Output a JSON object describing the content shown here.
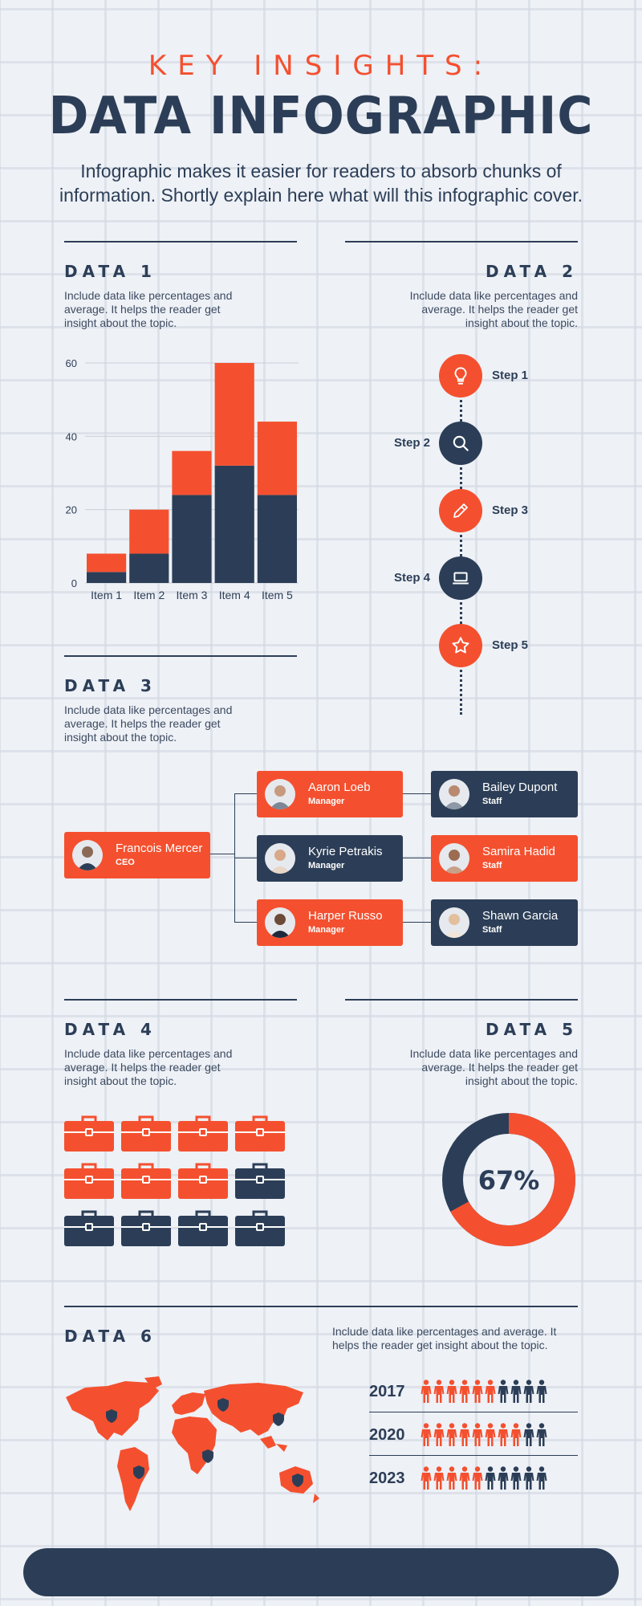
{
  "header": {
    "kicker": "KEY INSIGHTS:",
    "title": "DATA INFOGRAPHIC",
    "subtitle": "Infographic makes it easier for readers to absorb chunks of information. Shortly explain here what will this infographic cover."
  },
  "colors": {
    "accent": "#f4502f",
    "navy": "#2c3e57",
    "background": "#eef1f6"
  },
  "sections": {
    "data1": {
      "title": "DATA 1",
      "desc": "Include data like percentages and average. It helps the reader get insight about the topic."
    },
    "data2": {
      "title": "DATA 2",
      "desc": "Include data like percentages and average. It helps the reader get insight about the topic."
    },
    "data3": {
      "title": "DATA 3",
      "desc": "Include data like percentages and average. It helps the reader get insight about the topic."
    },
    "data4": {
      "title": "DATA 4",
      "desc": "Include data like percentages and average. It helps the reader get insight about the topic."
    },
    "data5": {
      "title": "DATA 5",
      "desc": "Include data like percentages and average. It helps the reader get insight about the topic."
    },
    "data6": {
      "title": "DATA 6",
      "desc": "Include data like percentages and average. It helps the reader get insight about the topic."
    }
  },
  "chart_data": {
    "type": "bar",
    "stacked": true,
    "categories": [
      "Item 1",
      "Item 2",
      "Item 3",
      "Item 4",
      "Item 5"
    ],
    "series": [
      {
        "values": [
          3,
          8,
          24,
          32,
          24
        ],
        "color": "#2c3e57"
      },
      {
        "values": [
          5,
          12,
          12,
          28,
          20
        ],
        "color": "#f4502f"
      }
    ],
    "yticks": [
      "0",
      "20",
      "40",
      "60"
    ],
    "ylim": [
      0,
      60
    ],
    "grid": "horizontal"
  },
  "steps": [
    {
      "label": "Step 1",
      "icon": "lightbulb-icon",
      "color": "#f4502f",
      "side": "right"
    },
    {
      "label": "Step 2",
      "icon": "search-icon",
      "color": "#2c3e57",
      "side": "left"
    },
    {
      "label": "Step 3",
      "icon": "pencil-icon",
      "color": "#f4502f",
      "side": "right"
    },
    {
      "label": "Step 4",
      "icon": "laptop-icon",
      "color": "#2c3e57",
      "side": "left"
    },
    {
      "label": "Step 5",
      "icon": "star-icon",
      "color": "#f4502f",
      "side": "right"
    }
  ],
  "org": {
    "ceo": {
      "name": "Francois Mercer",
      "role": "CEO"
    },
    "managers": [
      {
        "name": "Aaron Loeb",
        "role": "Manager"
      },
      {
        "name": "Kyrie Petrakis",
        "role": "Manager"
      },
      {
        "name": "Harper Russo",
        "role": "Manager"
      }
    ],
    "staff": [
      {
        "name": "Bailey Dupont",
        "role": "Staff"
      },
      {
        "name": "Samira Hadid",
        "role": "Staff"
      },
      {
        "name": "Shawn Garcia",
        "role": "Staff"
      }
    ]
  },
  "briefcases": {
    "total": 12,
    "highlighted": 7,
    "icon": "briefcase-icon"
  },
  "donut": {
    "label": "67%",
    "value": 67
  },
  "people_rows": [
    {
      "year": "2017",
      "highlighted": 6,
      "total": 10
    },
    {
      "year": "2020",
      "highlighted": 8,
      "total": 10
    },
    {
      "year": "2023",
      "highlighted": 5,
      "total": 10
    }
  ],
  "map": {
    "icon": "world-map-icon",
    "pin_icon": "shield-icon"
  }
}
